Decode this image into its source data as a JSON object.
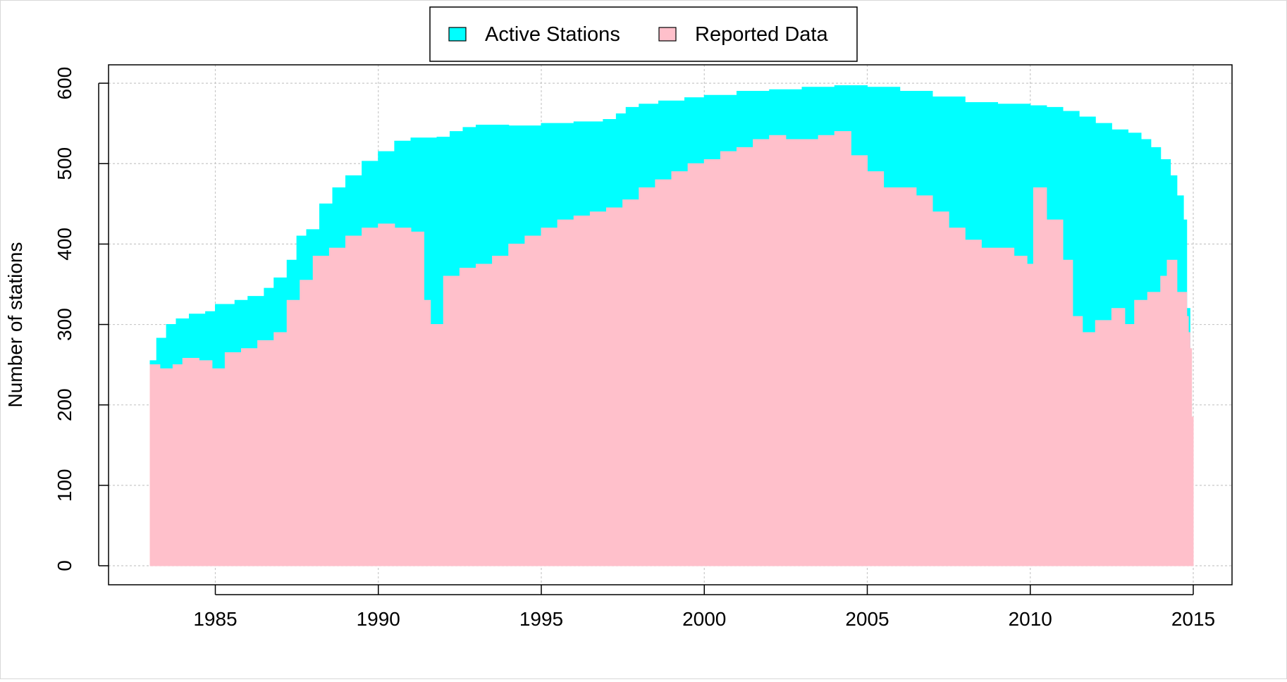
{
  "chart_data": {
    "type": "area",
    "title": "",
    "xlabel": "",
    "ylabel": "Number of stations",
    "xlim": [
      1983.0,
      2015.0
    ],
    "ylim": [
      0,
      600
    ],
    "x_ticks": [
      "1985",
      "1990",
      "1995",
      "2000",
      "2005",
      "2010",
      "2015"
    ],
    "y_ticks": [
      "0",
      "100",
      "200",
      "300",
      "400",
      "500",
      "600"
    ],
    "grid": true,
    "legend_position": "top-center",
    "series": [
      {
        "name": "Active Stations",
        "color": "#00FFFF",
        "x": [
          1983.0,
          1983.2,
          1983.5,
          1983.8,
          1984.2,
          1984.7,
          1985.0,
          1985.6,
          1986.0,
          1986.5,
          1986.8,
          1987.2,
          1987.5,
          1987.8,
          1988.2,
          1988.6,
          1989.0,
          1989.5,
          1990.0,
          1990.5,
          1991.0,
          1991.8,
          1992.2,
          1992.6,
          1993.0,
          1994.0,
          1995.0,
          1996.0,
          1996.9,
          1997.3,
          1997.6,
          1998.0,
          1998.6,
          1999.4,
          2000.0,
          2001.0,
          2002.0,
          2003.0,
          2004.0,
          2005.0,
          2006.0,
          2007.0,
          2008.0,
          2009.0,
          2010.0,
          2010.5,
          2011.0,
          2011.5,
          2012.0,
          2012.5,
          2013.0,
          2013.4,
          2013.7,
          2014.0,
          2014.3,
          2014.5,
          2014.7,
          2014.8,
          2014.9
        ],
        "values": [
          255,
          283,
          300,
          307,
          313,
          316,
          325,
          330,
          335,
          345,
          358,
          380,
          410,
          418,
          450,
          470,
          485,
          503,
          515,
          528,
          532,
          533,
          540,
          545,
          548,
          547,
          550,
          552,
          555,
          562,
          570,
          574,
          578,
          582,
          585,
          590,
          592,
          595,
          597,
          595,
          590,
          583,
          576,
          574,
          572,
          570,
          565,
          558,
          550,
          542,
          538,
          530,
          520,
          505,
          485,
          460,
          430,
          320,
          255
        ]
      },
      {
        "name": "Reported Data",
        "color": "#FFC0CB",
        "x": [
          1983.0,
          1983.3,
          1983.7,
          1984.0,
          1984.5,
          1984.9,
          1985.3,
          1985.8,
          1986.3,
          1986.8,
          1987.2,
          1987.6,
          1988.0,
          1988.5,
          1989.0,
          1989.5,
          1990.0,
          1990.5,
          1991.0,
          1991.4,
          1991.6,
          1992.0,
          1992.5,
          1993.0,
          1993.5,
          1994.0,
          1994.5,
          1995.0,
          1995.5,
          1996.0,
          1996.5,
          1997.0,
          1997.5,
          1998.0,
          1998.5,
          1999.0,
          1999.5,
          2000.0,
          2000.5,
          2001.0,
          2001.5,
          2002.0,
          2002.5,
          2003.0,
          2003.5,
          2004.0,
          2004.5,
          2005.0,
          2005.5,
          2006.0,
          2006.5,
          2007.0,
          2007.5,
          2008.0,
          2008.5,
          2009.0,
          2009.5,
          2009.9,
          2010.1,
          2010.5,
          2011.0,
          2011.3,
          2011.6,
          2012.0,
          2012.5,
          2012.9,
          2013.2,
          2013.6,
          2014.0,
          2014.2,
          2014.5,
          2014.8,
          2014.85,
          2014.9,
          2014.95,
          2015.0
        ],
        "values": [
          250,
          245,
          250,
          258,
          255,
          245,
          265,
          270,
          280,
          290,
          330,
          355,
          385,
          395,
          410,
          420,
          425,
          420,
          415,
          330,
          300,
          360,
          370,
          375,
          385,
          400,
          410,
          420,
          430,
          435,
          440,
          445,
          455,
          470,
          480,
          490,
          500,
          505,
          515,
          520,
          530,
          535,
          530,
          530,
          535,
          540,
          510,
          490,
          470,
          470,
          460,
          440,
          420,
          405,
          395,
          395,
          385,
          375,
          470,
          430,
          380,
          310,
          290,
          305,
          320,
          300,
          330,
          340,
          360,
          380,
          340,
          310,
          290,
          270,
          185,
          0
        ]
      }
    ]
  }
}
